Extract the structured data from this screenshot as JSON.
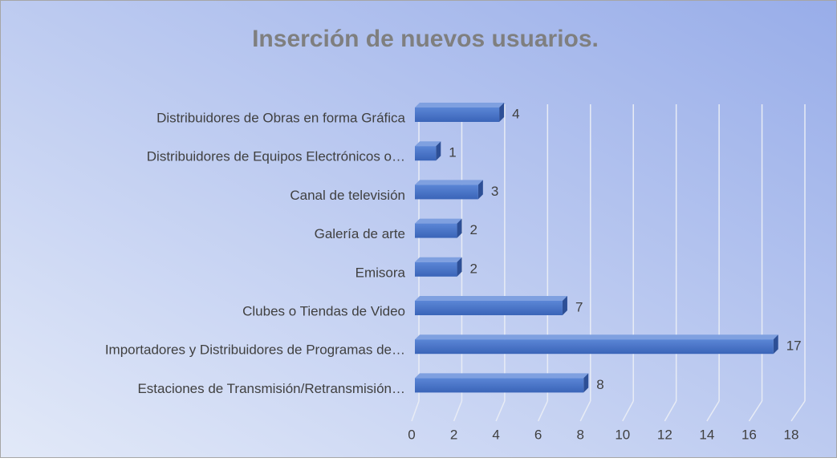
{
  "chart_data": {
    "type": "bar",
    "orientation": "horizontal",
    "title": "Inserción de nuevos usuarios.",
    "categories": [
      "Distribuidores de Obras en forma Gráfica",
      "Distribuidores de Equipos Electrónicos o…",
      "Canal de televisión",
      "Galería de arte",
      "Emisora",
      "Clubes o Tiendas de Video",
      "Importadores y Distribuidores de Programas de…",
      "Estaciones de Transmisión/Retransmisión…"
    ],
    "values": [
      4,
      1,
      3,
      2,
      2,
      7,
      17,
      8
    ],
    "color": "#4472c4",
    "xlim": [
      0,
      18
    ],
    "xticks": [
      0,
      2,
      4,
      6,
      8,
      10,
      12,
      14,
      16,
      18
    ],
    "grid": true
  }
}
